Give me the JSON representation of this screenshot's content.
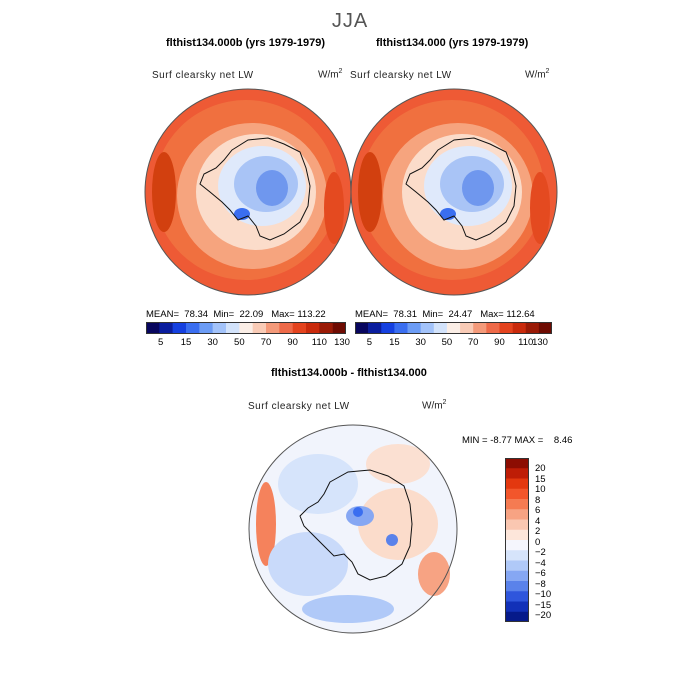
{
  "page": {
    "season": "JJA"
  },
  "panels": [
    {
      "title": "flthist134.000b (yrs 1979-1979)",
      "variable": "Surf clearsky net LW",
      "units": "W/m",
      "units_exp": "2",
      "stats": {
        "mean_label": "MEAN=",
        "mean": "78.34",
        "min_label": "Min=",
        "min": "22.09",
        "max_label": "Max=",
        "max": "113.22"
      }
    },
    {
      "title": "flthist134.000 (yrs 1979-1979)",
      "variable": "Surf clearsky net LW",
      "units": "W/m",
      "units_exp": "2",
      "stats": {
        "mean_label": "MEAN=",
        "mean": "78.31",
        "min_label": "Min=",
        "min": "24.47",
        "max_label": "Max=",
        "max": "112.64"
      }
    }
  ],
  "top_colorbar": {
    "labels": [
      "5",
      "15",
      "30",
      "50",
      "70",
      "90",
      "110",
      "130"
    ],
    "colors": [
      "#08065e",
      "#0a1d9e",
      "#1540e0",
      "#3a6ef0",
      "#6c9cf5",
      "#a3c3fa",
      "#d3e3fb",
      "#fbeee6",
      "#f9cbb6",
      "#f49a7a",
      "#ee6a49",
      "#e4431e",
      "#c92a0c",
      "#9a1a06",
      "#6e0b02"
    ]
  },
  "diff_panel": {
    "title": "flthist134.000b - flthist134.000",
    "variable": "Surf clearsky net LW",
    "units": "W/m",
    "units_exp": "2",
    "minmax": {
      "min_label": "MIN =",
      "min": "-8.77",
      "max_label": "MAX =",
      "max": "8.46"
    }
  },
  "diff_colorbar": {
    "labels": [
      "20",
      "15",
      "10",
      "8",
      "6",
      "4",
      "2",
      "0",
      "−2",
      "−4",
      "−6",
      "−8",
      "−10",
      "−15",
      "−20"
    ],
    "colors": [
      "#8c0d02",
      "#be1d06",
      "#e3380f",
      "#f2562b",
      "#f57b52",
      "#f7a383",
      "#fac7b1",
      "#fde6da",
      "#f5f6fd",
      "#d6e4fb",
      "#b0c9f8",
      "#86a7f3",
      "#5a82ea",
      "#2f56dc",
      "#1231b8",
      "#061a8a"
    ]
  },
  "legend_colors": {
    "land_outline": "#111111",
    "panel_border": "#555555"
  }
}
